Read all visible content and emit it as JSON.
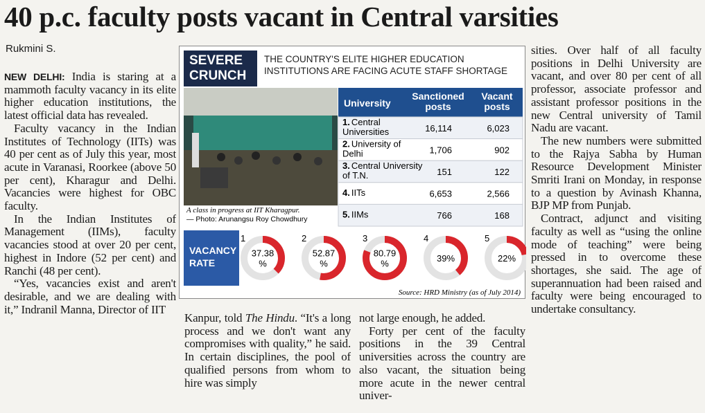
{
  "headline": "40 p.c. faculty posts vacant in Central varsities",
  "byline": "Rukmini S.",
  "graphic": {
    "tag": [
      "SEVERE",
      "CRUNCH"
    ],
    "heading": "THE COUNTRY'S ELITE HIGHER EDUCATION INSTITUTIONS ARE FACING ACUTE STAFF SHORTAGE",
    "photo_caption": "A class in progress at IIT Kharagpur.",
    "photo_credit": "— Photo: Arunangsu Roy Chowdhury",
    "table": {
      "header": [
        "University",
        "Sanctioned posts",
        "Vacant posts"
      ],
      "rows": [
        {
          "num": "1.",
          "name": "Central Universities",
          "sanctioned": "16,114",
          "vacant": "6,023"
        },
        {
          "num": "2.",
          "name": "University of Delhi",
          "sanctioned": "1,706",
          "vacant": "902"
        },
        {
          "num": "3.",
          "name": "Central University of T.N.",
          "sanctioned": "151",
          "vacant": "122"
        },
        {
          "num": "4.",
          "name": "IITs",
          "sanctioned": "6,653",
          "vacant": "2,566"
        },
        {
          "num": "5.",
          "name": "IIMs",
          "sanctioned": "766",
          "vacant": "168"
        }
      ]
    },
    "vacancy_tag": [
      "VACANCY",
      "RATE"
    ],
    "vacancy_rates": [
      {
        "number": "1",
        "value": 37.38,
        "label": [
          "37.38",
          "%"
        ]
      },
      {
        "number": "2",
        "value": 52.87,
        "label": [
          "52.87",
          "%"
        ]
      },
      {
        "number": "3",
        "value": 80.79,
        "label": [
          "80.79",
          "%"
        ]
      },
      {
        "number": "4",
        "value": 39,
        "label": [
          "39%"
        ]
      },
      {
        "number": "5",
        "value": 22,
        "label": [
          "22%"
        ]
      }
    ],
    "source": "Source: HRD Ministry (as of July 2014)"
  },
  "columns": [
    {
      "paragraphs": [
        {
          "runs": [
            {
              "text": "NEW DELHI:",
              "style": "dateline"
            },
            {
              "text": " India is staring at a mammoth faculty vacancy in its elite higher education institutions, the latest official data has revealed."
            }
          ],
          "indent": false
        },
        {
          "runs": [
            {
              "text": "Faculty vacancy in the Indian Institutes of Technology (IITs) was 40 per cent as of July this year, most acute in Varanasi, Roorkee (above 50 per cent), Kharagur and Delhi. Vacancies were highest for OBC faculty."
            }
          ]
        },
        {
          "runs": [
            {
              "text": "In the Indian Institutes of Management (IIMs), faculty vacancies stood at over 20 per cent, highest in Indore (52 per cent) and Ranchi (48 per cent)."
            }
          ]
        },
        {
          "runs": [
            {
              "text": "“Yes, vacancies exist and aren't desirable, and we are dealing with it,” Indranil Manna, Director of IIT"
            }
          ]
        }
      ]
    },
    {
      "paragraphs": [
        {
          "runs": [
            {
              "text": "Kanpur, told "
            },
            {
              "text": "The Hindu",
              "style": "italic"
            },
            {
              "text": ". “It's a long process and we don't want any compromises with quality,” he said. In certain disciplines, the pool of qualified persons from whom to hire was simply"
            }
          ],
          "indent": false
        }
      ]
    },
    {
      "paragraphs": [
        {
          "runs": [
            {
              "text": "not large enough, he added."
            }
          ],
          "indent": false
        },
        {
          "runs": [
            {
              "text": "Forty per cent of the faculty positions in the 39 Central universities across the country are also vacant, the situation being more acute in the newer central univer-"
            }
          ]
        }
      ]
    },
    {
      "paragraphs": [
        {
          "runs": [
            {
              "text": "sities. Over half of all faculty positions in Delhi University are vacant, and over 80 per cent of all professor, associate professor and assistant professor positions in the new Central university of Tamil Nadu are vacant."
            }
          ],
          "indent": false
        },
        {
          "runs": [
            {
              "text": "The new numbers were submitted to the Rajya Sabha by Human Resource Development Minister Smriti Irani on Monday, in response to a question by Avinash Khanna, BJP MP from Punjab."
            }
          ]
        },
        {
          "runs": [
            {
              "text": "Contract, adjunct and visiting faculty as well as “using the online mode of teaching” were being pressed in to overcome these shortages, she said. The age of superannuation had been raised and faculty were being encouraged to undertake consultancy."
            }
          ]
        }
      ]
    }
  ]
}
